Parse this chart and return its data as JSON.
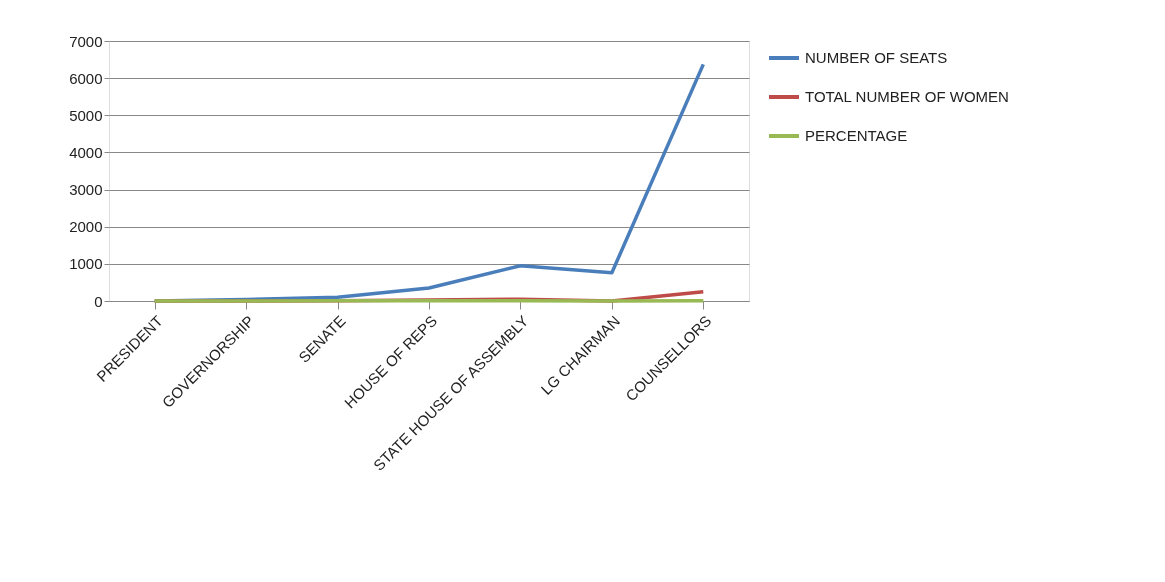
{
  "chart_data": {
    "type": "line",
    "categories": [
      "PRESIDENT",
      "GOVERNORSHIP",
      "SENATE",
      "HOUSE OF REPS",
      "STATE HOUSE OF ASSEMBLY",
      "LG CHAIRMAN",
      "COUNSELLORS"
    ],
    "series": [
      {
        "name": "NUMBER OF SEATS",
        "color": "#4a7ebb",
        "values": [
          0,
          40,
          100,
          350,
          950,
          760,
          6370
        ]
      },
      {
        "name": "TOTAL NUMBER OF WOMEN",
        "color": "#be4b48",
        "values": [
          0,
          0,
          10,
          30,
          50,
          0,
          250
        ]
      },
      {
        "name": "PERCENTAGE",
        "color": "#98b954",
        "values": [
          0,
          0,
          10,
          10,
          10,
          0,
          10
        ]
      }
    ],
    "ylim": [
      0,
      7000
    ],
    "yticks": [
      0,
      1000,
      2000,
      3000,
      4000,
      5000,
      6000,
      7000
    ],
    "grid": "y",
    "legend": "right",
    "marker": "none",
    "line_style": "solid"
  }
}
